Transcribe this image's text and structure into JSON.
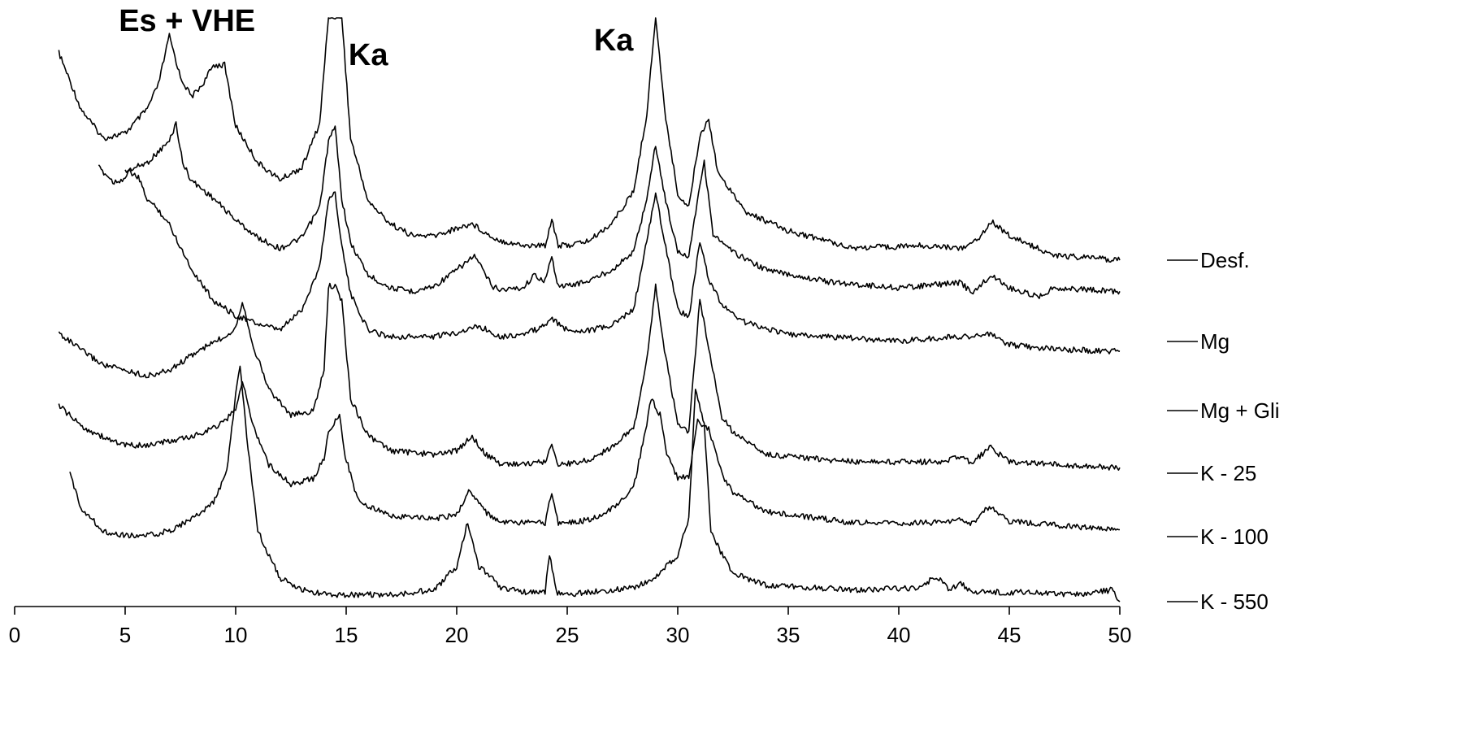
{
  "chart_data": {
    "type": "line",
    "title": "",
    "xlabel": "",
    "ylabel": "",
    "xlim": [
      0,
      50
    ],
    "x_ticks": [
      0,
      5,
      10,
      15,
      20,
      25,
      30,
      35,
      40,
      45,
      50
    ],
    "grid": false,
    "legend_position": "right",
    "annotations": [
      {
        "text": "Es + VHE",
        "x": 7.8
      },
      {
        "text": "Ka",
        "x": 16.0
      },
      {
        "text": "Ka",
        "x": 27.1
      }
    ],
    "series": [
      {
        "name": "Desf.",
        "x": [
          2.0,
          3.0,
          4.0,
          5.0,
          6.0,
          6.5,
          7.0,
          7.5,
          8.0,
          8.5,
          9.0,
          9.5,
          10.0,
          11.0,
          12.0,
          13.0,
          13.8,
          14.2,
          14.5,
          14.8,
          15.2,
          16.0,
          17.0,
          18.0,
          19.0,
          20.0,
          20.7,
          21.5,
          22.0,
          23.0,
          24.0,
          24.3,
          24.6,
          25.0,
          26.0,
          27.0,
          28.0,
          28.6,
          29.0,
          29.4,
          30.0,
          30.5,
          31.0,
          31.4,
          31.8,
          32.0,
          32.5,
          33.0,
          35.0,
          38.0,
          41.0,
          43.0,
          43.7,
          44.2,
          45.0,
          47.0,
          50.0
        ],
        "values": [
          0.85,
          0.62,
          0.5,
          0.52,
          0.62,
          0.72,
          0.92,
          0.75,
          0.67,
          0.72,
          0.8,
          0.8,
          0.55,
          0.4,
          0.33,
          0.38,
          0.56,
          1.0,
          1.0,
          1.0,
          0.5,
          0.24,
          0.15,
          0.1,
          0.1,
          0.13,
          0.15,
          0.1,
          0.08,
          0.06,
          0.06,
          0.17,
          0.06,
          0.06,
          0.08,
          0.15,
          0.28,
          0.6,
          1.0,
          0.62,
          0.27,
          0.22,
          0.51,
          0.58,
          0.37,
          0.33,
          0.28,
          0.2,
          0.12,
          0.05,
          0.06,
          0.05,
          0.1,
          0.16,
          0.1,
          0.02,
          0.0
        ]
      },
      {
        "name": "Mg",
        "x": [
          5.0,
          6.0,
          7.0,
          7.3,
          7.6,
          8.0,
          9.0,
          10.0,
          11.0,
          12.0,
          13.0,
          13.8,
          14.2,
          14.5,
          14.8,
          15.2,
          16.0,
          17.0,
          18.0,
          19.0,
          20.0,
          20.8,
          21.6,
          22.0,
          23.0,
          23.5,
          24.0,
          24.3,
          24.6,
          25.0,
          26.0,
          27.0,
          28.0,
          28.6,
          29.0,
          29.4,
          30.0,
          30.5,
          31.0,
          31.2,
          31.6,
          32.0,
          32.5,
          34.0,
          37.0,
          40.0,
          42.8,
          43.3,
          44.2,
          45.0,
          46.3,
          47.0,
          50.0
        ],
        "values": [
          0.95,
          1.0,
          1.12,
          1.22,
          1.0,
          0.9,
          0.8,
          0.68,
          0.58,
          0.52,
          0.58,
          0.75,
          1.12,
          1.2,
          0.8,
          0.55,
          0.37,
          0.3,
          0.28,
          0.31,
          0.4,
          0.48,
          0.31,
          0.29,
          0.3,
          0.37,
          0.34,
          0.47,
          0.31,
          0.31,
          0.34,
          0.4,
          0.5,
          0.8,
          1.1,
          0.82,
          0.5,
          0.48,
          0.88,
          1.0,
          0.6,
          0.55,
          0.5,
          0.4,
          0.33,
          0.3,
          0.33,
          0.27,
          0.37,
          0.3,
          0.25,
          0.3,
          0.28
        ]
      },
      {
        "name": "Mg + Gli",
        "x": [
          3.8,
          4.5,
          5.0,
          5.2,
          5.6,
          6.0,
          6.5,
          7.0,
          8.0,
          9.0,
          10.0,
          11.0,
          12.0,
          13.0,
          13.8,
          14.2,
          14.5,
          14.8,
          15.2,
          16.0,
          17.0,
          19.0,
          20.0,
          21.0,
          22.0,
          23.0,
          24.0,
          24.2,
          25.0,
          26.0,
          27.0,
          28.0,
          28.6,
          29.0,
          29.4,
          30.0,
          30.5,
          31.0,
          31.4,
          32.0,
          33.0,
          35.0,
          40.0,
          44.2,
          45.0,
          47.2,
          50.0
        ],
        "values": [
          1.15,
          1.08,
          1.1,
          1.13,
          1.1,
          1.0,
          0.95,
          0.88,
          0.67,
          0.52,
          0.45,
          0.41,
          0.38,
          0.48,
          0.68,
          1.0,
          1.03,
          0.78,
          0.55,
          0.38,
          0.35,
          0.35,
          0.37,
          0.4,
          0.35,
          0.36,
          0.4,
          0.44,
          0.38,
          0.38,
          0.4,
          0.48,
          0.8,
          1.03,
          0.8,
          0.48,
          0.44,
          0.8,
          0.62,
          0.5,
          0.42,
          0.36,
          0.33,
          0.36,
          0.31,
          0.29,
          0.28
        ]
      },
      {
        "name": "K - 25",
        "x": [
          2.0,
          3.0,
          4.0,
          5.0,
          6.0,
          7.0,
          8.0,
          9.0,
          9.5,
          10.0,
          10.3,
          10.8,
          11.5,
          12.5,
          13.5,
          14.0,
          14.2,
          14.5,
          14.8,
          15.2,
          16.0,
          17.0,
          19.0,
          20.0,
          20.7,
          21.3,
          22.0,
          23.0,
          24.0,
          24.3,
          24.6,
          25.0,
          26.0,
          27.0,
          28.0,
          28.6,
          29.0,
          29.4,
          30.0,
          30.5,
          31.0,
          31.4,
          32.0,
          32.5,
          34.0,
          38.0,
          42.0,
          42.8,
          43.3,
          44.1,
          45.0,
          48.0,
          50.0
        ],
        "values": [
          0.75,
          0.66,
          0.58,
          0.55,
          0.52,
          0.55,
          0.63,
          0.7,
          0.73,
          0.78,
          0.92,
          0.68,
          0.45,
          0.31,
          0.33,
          0.55,
          1.0,
          1.0,
          0.92,
          0.4,
          0.2,
          0.12,
          0.1,
          0.12,
          0.2,
          0.1,
          0.05,
          0.05,
          0.06,
          0.15,
          0.05,
          0.05,
          0.07,
          0.14,
          0.24,
          0.6,
          1.0,
          0.66,
          0.26,
          0.22,
          0.93,
          0.66,
          0.3,
          0.22,
          0.1,
          0.06,
          0.06,
          0.09,
          0.05,
          0.14,
          0.06,
          0.04,
          0.03
        ]
      },
      {
        "name": "K - 100",
        "x": [
          2.0,
          3.0,
          4.0,
          5.0,
          6.0,
          7.0,
          8.0,
          9.0,
          9.5,
          10.0,
          10.3,
          10.8,
          11.5,
          12.5,
          13.5,
          14.0,
          14.2,
          14.7,
          14.9,
          15.5,
          16.0,
          17.0,
          19.0,
          20.0,
          20.6,
          21.3,
          22.0,
          23.0,
          24.0,
          24.3,
          24.6,
          25.0,
          26.0,
          27.0,
          28.0,
          28.6,
          28.8,
          29.2,
          29.5,
          30.0,
          30.5,
          30.9,
          31.4,
          32.0,
          32.5,
          34.0,
          38.0,
          42.0,
          42.8,
          43.3,
          44.1,
          45.0,
          48.0,
          50.0
        ],
        "values": [
          0.95,
          0.8,
          0.72,
          0.66,
          0.66,
          0.69,
          0.72,
          0.79,
          0.83,
          0.93,
          1.12,
          0.8,
          0.52,
          0.38,
          0.42,
          0.57,
          0.75,
          0.88,
          0.62,
          0.28,
          0.22,
          0.15,
          0.13,
          0.16,
          0.34,
          0.18,
          0.1,
          0.1,
          0.1,
          0.32,
          0.1,
          0.1,
          0.12,
          0.2,
          0.35,
          0.82,
          1.0,
          0.88,
          0.6,
          0.42,
          0.44,
          0.83,
          0.78,
          0.45,
          0.32,
          0.18,
          0.1,
          0.1,
          0.13,
          0.09,
          0.22,
          0.11,
          0.07,
          0.05
        ]
      },
      {
        "name": "K - 550",
        "x": [
          2.5,
          3.0,
          4.0,
          5.0,
          6.0,
          7.0,
          8.0,
          9.0,
          9.6,
          10.0,
          10.2,
          10.5,
          11.0,
          12.0,
          13.0,
          14.0,
          15.0,
          17.0,
          19.0,
          20.0,
          20.5,
          21.0,
          22.0,
          23.0,
          24.0,
          24.2,
          24.5,
          25.0,
          26.0,
          28.0,
          29.0,
          30.0,
          30.5,
          30.8,
          31.2,
          31.5,
          32.0,
          32.5,
          34.0,
          38.0,
          41.0,
          41.7,
          42.3,
          42.8,
          43.3,
          46.0,
          48.0,
          49.7,
          50.0
        ],
        "values": [
          0.54,
          0.4,
          0.3,
          0.28,
          0.28,
          0.3,
          0.35,
          0.42,
          0.55,
          0.88,
          1.0,
          0.7,
          0.3,
          0.1,
          0.05,
          0.03,
          0.03,
          0.03,
          0.05,
          0.15,
          0.34,
          0.15,
          0.06,
          0.04,
          0.04,
          0.2,
          0.04,
          0.03,
          0.04,
          0.06,
          0.1,
          0.2,
          0.35,
          0.9,
          0.75,
          0.3,
          0.2,
          0.12,
          0.07,
          0.05,
          0.06,
          0.11,
          0.05,
          0.08,
          0.04,
          0.04,
          0.03,
          0.05,
          0.0
        ]
      }
    ]
  }
}
